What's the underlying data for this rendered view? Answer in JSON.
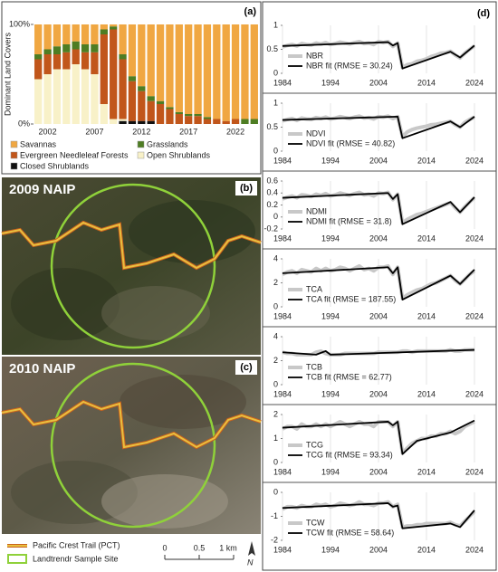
{
  "chart_data": [
    {
      "type": "stacked_bar",
      "panel_label": "(a)",
      "y_label": "Dominant Land Covers",
      "categories": [
        null,
        "2002",
        null,
        null,
        null,
        null,
        "2007",
        null,
        null,
        null,
        null,
        "2012",
        null,
        null,
        null,
        null,
        "2017",
        null,
        null,
        null,
        null,
        "2022",
        null,
        null
      ],
      "ylim": [
        0,
        100
      ],
      "yticks": [
        {
          "value": 0,
          "label": "0%"
        },
        {
          "value": 100,
          "label": "100%"
        }
      ],
      "series": [
        {
          "name": "Savannas",
          "color": "#f0a742",
          "values": [
            30,
            25,
            22,
            20,
            17,
            20,
            20,
            5,
            2,
            30,
            52,
            62,
            72,
            77,
            83,
            88,
            90,
            90,
            93,
            95,
            97,
            95,
            95,
            95
          ]
        },
        {
          "name": "Grasslands",
          "color": "#4e7d23",
          "values": [
            5,
            5,
            8,
            8,
            8,
            8,
            8,
            5,
            3,
            5,
            5,
            5,
            5,
            3,
            2,
            2,
            2,
            2,
            2,
            0,
            0,
            0,
            5,
            5
          ]
        },
        {
          "name": "Evergreen Needleleaf Forests",
          "color": "#c1561b",
          "values": [
            20,
            20,
            15,
            17,
            15,
            17,
            22,
            70,
            90,
            60,
            40,
            30,
            20,
            20,
            15,
            10,
            8,
            8,
            5,
            5,
            3,
            5,
            0,
            0
          ]
        },
        {
          "name": "Open Shrublands",
          "color": "#f8f1c8",
          "values": [
            45,
            50,
            55,
            55,
            60,
            55,
            50,
            20,
            5,
            2,
            0,
            0,
            0,
            0,
            0,
            0,
            0,
            0,
            0,
            0,
            0,
            0,
            0,
            0
          ]
        },
        {
          "name": "Closed Shrublands",
          "color": "#111111",
          "values": [
            0,
            0,
            0,
            0,
            0,
            0,
            0,
            0,
            0,
            3,
            3,
            3,
            3,
            0,
            0,
            0,
            0,
            0,
            0,
            0,
            0,
            0,
            0,
            0
          ]
        }
      ]
    },
    {
      "type": "line",
      "panel_label": "(d)",
      "xlim": [
        1984,
        2024
      ],
      "xticks": [
        1984,
        1994,
        2004,
        2014,
        2024
      ],
      "ylim": [
        0,
        1
      ],
      "yticks": [
        0,
        0.5,
        1
      ],
      "x": [
        1984,
        1985,
        1986,
        1987,
        1988,
        1989,
        1990,
        1991,
        1992,
        1993,
        1994,
        1995,
        1996,
        1997,
        1998,
        1999,
        2000,
        2001,
        2002,
        2003,
        2004,
        2005,
        2006,
        2007,
        2008,
        2009,
        2010,
        2011,
        2012,
        2013,
        2014,
        2015,
        2016,
        2017,
        2018,
        2019,
        2020,
        2021,
        2022,
        2023,
        2024
      ],
      "series": [
        {
          "name": "NBR",
          "color": "#c8c8c8",
          "values": [
            0.55,
            0.58,
            0.6,
            0.57,
            0.62,
            0.6,
            0.59,
            0.63,
            0.61,
            0.64,
            0.6,
            0.62,
            0.65,
            0.63,
            0.61,
            0.64,
            0.66,
            0.62,
            0.63,
            0.6,
            0.66,
            0.64,
            0.66,
            0.56,
            0.63,
            0.12,
            0.18,
            0.2,
            0.25,
            0.27,
            0.3,
            0.35,
            0.38,
            0.42,
            0.43,
            0.46,
            0.38,
            0.32,
            0.42,
            0.5,
            0.57
          ]
        },
        {
          "name": "NBR fit (RMSE = 30.24)",
          "color": "#000000",
          "x": [
            1984,
            2006,
            2007,
            2008,
            2009,
            2019,
            2021,
            2024
          ],
          "values": [
            0.57,
            0.65,
            0.58,
            0.63,
            0.1,
            0.45,
            0.33,
            0.58
          ]
        }
      ]
    },
    {
      "type": "line",
      "xlim": [
        1984,
        2024
      ],
      "xticks": [
        1984,
        1994,
        2004,
        2014,
        2024
      ],
      "ylim": [
        0,
        1
      ],
      "yticks": [
        0,
        0.5,
        1
      ],
      "x": [
        1984,
        1985,
        1986,
        1987,
        1988,
        1989,
        1990,
        1991,
        1992,
        1993,
        1994,
        1995,
        1996,
        1997,
        1998,
        1999,
        2000,
        2001,
        2002,
        2003,
        2004,
        2005,
        2006,
        2007,
        2008,
        2009,
        2010,
        2011,
        2012,
        2013,
        2014,
        2015,
        2016,
        2017,
        2018,
        2019,
        2020,
        2021,
        2022,
        2023,
        2024
      ],
      "series": [
        {
          "name": "NDVI",
          "color": "#c8c8c8",
          "values": [
            0.63,
            0.66,
            0.68,
            0.64,
            0.69,
            0.67,
            0.66,
            0.7,
            0.68,
            0.71,
            0.67,
            0.69,
            0.72,
            0.7,
            0.68,
            0.71,
            0.73,
            0.69,
            0.7,
            0.67,
            0.72,
            0.71,
            0.73,
            0.68,
            0.72,
            0.3,
            0.4,
            0.45,
            0.48,
            0.5,
            0.52,
            0.55,
            0.56,
            0.58,
            0.6,
            0.62,
            0.55,
            0.5,
            0.6,
            0.66,
            0.71
          ]
        },
        {
          "name": "NDVI fit (RMSE = 40.82)",
          "color": "#000000",
          "x": [
            1984,
            2008,
            2009,
            2019,
            2021,
            2024
          ],
          "values": [
            0.65,
            0.72,
            0.27,
            0.62,
            0.5,
            0.72
          ]
        }
      ]
    },
    {
      "type": "line",
      "xlim": [
        1984,
        2024
      ],
      "xticks": [
        1984,
        1994,
        2004,
        2014,
        2024
      ],
      "ylim": [
        -0.2,
        0.6
      ],
      "yticks": [
        -0.2,
        0,
        0.2,
        0.4,
        0.6
      ],
      "x": [
        1984,
        1985,
        1986,
        1987,
        1988,
        1989,
        1990,
        1991,
        1992,
        1993,
        1994,
        1995,
        1996,
        1997,
        1998,
        1999,
        2000,
        2001,
        2002,
        2003,
        2004,
        2005,
        2006,
        2007,
        2008,
        2009,
        2010,
        2011,
        2012,
        2013,
        2014,
        2015,
        2016,
        2017,
        2018,
        2019,
        2020,
        2021,
        2022,
        2023,
        2024
      ],
      "series": [
        {
          "name": "NDMI",
          "color": "#c8c8c8",
          "values": [
            0.3,
            0.33,
            0.35,
            0.32,
            0.37,
            0.36,
            0.34,
            0.38,
            0.36,
            0.39,
            0.35,
            0.37,
            0.4,
            0.38,
            0.36,
            0.39,
            0.41,
            0.37,
            0.38,
            0.35,
            0.4,
            0.39,
            0.41,
            0.29,
            0.38,
            -0.1,
            -0.04,
            0,
            0.04,
            0.06,
            0.09,
            0.12,
            0.15,
            0.18,
            0.21,
            0.24,
            0.15,
            0.08,
            0.17,
            0.25,
            0.32
          ]
        },
        {
          "name": "NDMI fit (RMSE = 31.8)",
          "color": "#000000",
          "x": [
            1984,
            2006,
            2007,
            2008,
            2009,
            2019,
            2021,
            2024
          ],
          "values": [
            0.32,
            0.4,
            0.3,
            0.38,
            -0.12,
            0.25,
            0.08,
            0.33
          ]
        }
      ]
    },
    {
      "type": "line",
      "xlim": [
        1984,
        2024
      ],
      "xticks": [
        1984,
        1994,
        2004,
        2014,
        2024
      ],
      "ylim": [
        0,
        4
      ],
      "yticks": [
        0,
        2,
        4
      ],
      "x": [
        1984,
        1985,
        1986,
        1987,
        1988,
        1989,
        1990,
        1991,
        1992,
        1993,
        1994,
        1995,
        1996,
        1997,
        1998,
        1999,
        2000,
        2001,
        2002,
        2003,
        2004,
        2005,
        2006,
        2007,
        2008,
        2009,
        2010,
        2011,
        2012,
        2013,
        2014,
        2015,
        2016,
        2017,
        2018,
        2019,
        2020,
        2021,
        2022,
        2023,
        2024
      ],
      "series": [
        {
          "name": "TCA",
          "color": "#c8c8c8",
          "values": [
            2.7,
            2.9,
            3,
            2.8,
            3.1,
            3,
            2.9,
            3.2,
            3,
            3.2,
            3,
            3.1,
            3.3,
            3.2,
            3,
            3.2,
            3.4,
            3.1,
            3.2,
            3,
            3.3,
            3.3,
            3.4,
            2.7,
            3.3,
            0.7,
            1,
            1.2,
            1.4,
            1.5,
            1.7,
            1.9,
            2,
            2.2,
            2.4,
            2.6,
            2.2,
            1.9,
            2.3,
            2.7,
            3
          ]
        },
        {
          "name": "TCA fit (RMSE = 187.55)",
          "color": "#000000",
          "x": [
            1984,
            2006,
            2007,
            2008,
            2009,
            2019,
            2021,
            2024
          ],
          "values": [
            2.8,
            3.3,
            2.8,
            3.3,
            0.6,
            2.6,
            1.9,
            3.1
          ]
        }
      ]
    },
    {
      "type": "line",
      "xlim": [
        1984,
        2024
      ],
      "xticks": [
        1984,
        1994,
        2004,
        2014,
        2024
      ],
      "ylim": [
        0,
        4
      ],
      "yticks": [
        0,
        2,
        4
      ],
      "x": [
        1984,
        1985,
        1986,
        1987,
        1988,
        1989,
        1990,
        1991,
        1992,
        1993,
        1994,
        1995,
        1996,
        1997,
        1998,
        1999,
        2000,
        2001,
        2002,
        2003,
        2004,
        2005,
        2006,
        2007,
        2008,
        2009,
        2010,
        2011,
        2012,
        2013,
        2014,
        2015,
        2016,
        2017,
        2018,
        2019,
        2020,
        2021,
        2022,
        2023,
        2024
      ],
      "series": [
        {
          "name": "TCB",
          "color": "#c8c8c8",
          "values": [
            2.7,
            2.6,
            2.6,
            2.5,
            2.5,
            2.5,
            2.5,
            2.7,
            2.8,
            2.6,
            2.5,
            2.5,
            2.5,
            2.6,
            2.6,
            2.6,
            2.6,
            2.6,
            2.6,
            2.6,
            2.7,
            2.7,
            2.7,
            2.7,
            2.7,
            2.8,
            2.8,
            2.7,
            2.8,
            2.8,
            2.8,
            2.8,
            2.8,
            2.8,
            2.8,
            2.9,
            2.8,
            2.8,
            2.9,
            2.9,
            2.9
          ]
        },
        {
          "name": "TCB fit (RMSE = 62.77)",
          "color": "#000000",
          "x": [
            1984,
            1991,
            1993,
            1994,
            2024
          ],
          "values": [
            2.7,
            2.5,
            2.8,
            2.5,
            2.9
          ]
        }
      ]
    },
    {
      "type": "line",
      "xlim": [
        1984,
        2024
      ],
      "xticks": [
        1984,
        1994,
        2004,
        2014,
        2024
      ],
      "ylim": [
        0,
        2
      ],
      "yticks": [
        0,
        1,
        2
      ],
      "x": [
        1984,
        1985,
        1986,
        1987,
        1988,
        1989,
        1990,
        1991,
        1992,
        1993,
        1994,
        1995,
        1996,
        1997,
        1998,
        1999,
        2000,
        2001,
        2002,
        2003,
        2004,
        2005,
        2006,
        2007,
        2008,
        2009,
        2010,
        2011,
        2012,
        2013,
        2014,
        2015,
        2016,
        2017,
        2018,
        2019,
        2020,
        2021,
        2022,
        2023,
        2024
      ],
      "series": [
        {
          "name": "TCG",
          "color": "#c8c8c8",
          "values": [
            1.4,
            1.5,
            1.5,
            1.4,
            1.6,
            1.5,
            1.5,
            1.6,
            1.5,
            1.6,
            1.5,
            1.6,
            1.7,
            1.6,
            1.5,
            1.6,
            1.7,
            1.6,
            1.6,
            1.5,
            1.7,
            1.7,
            1.7,
            1.5,
            1.7,
            0.4,
            0.6,
            0.8,
            0.9,
            1,
            1,
            1.1,
            1.1,
            1.2,
            1.2,
            1.3,
            1.2,
            1.3,
            1.5,
            1.6,
            1.7
          ]
        },
        {
          "name": "TCG fit (RMSE = 93.34)",
          "color": "#000000",
          "x": [
            1984,
            2006,
            2007,
            2008,
            2009,
            2012,
            2019,
            2024
          ],
          "values": [
            1.45,
            1.7,
            1.55,
            1.7,
            0.35,
            0.9,
            1.25,
            1.75
          ]
        }
      ]
    },
    {
      "type": "line",
      "xlim": [
        1984,
        2024
      ],
      "xticks": [
        1984,
        1994,
        2004,
        2014,
        2024
      ],
      "ylim": [
        -2,
        0
      ],
      "yticks": [
        -2,
        -1,
        0
      ],
      "x": [
        1984,
        1985,
        1986,
        1987,
        1988,
        1989,
        1990,
        1991,
        1992,
        1993,
        1994,
        1995,
        1996,
        1997,
        1998,
        1999,
        2000,
        2001,
        2002,
        2003,
        2004,
        2005,
        2006,
        2007,
        2008,
        2009,
        2010,
        2011,
        2012,
        2013,
        2014,
        2015,
        2016,
        2017,
        2018,
        2019,
        2020,
        2021,
        2022,
        2023,
        2024
      ],
      "series": [
        {
          "name": "TCW",
          "color": "#c8c8c8",
          "values": [
            -0.7,
            -0.6,
            -0.6,
            -0.65,
            -0.55,
            -0.6,
            -0.6,
            -0.5,
            -0.55,
            -0.5,
            -0.6,
            -0.55,
            -0.45,
            -0.5,
            -0.55,
            -0.5,
            -0.4,
            -0.5,
            -0.5,
            -0.55,
            -0.45,
            -0.45,
            -0.4,
            -0.6,
            -0.5,
            -1.45,
            -1.4,
            -1.4,
            -1.35,
            -1.35,
            -1.3,
            -1.3,
            -1.3,
            -1.3,
            -1.3,
            -1.25,
            -1.35,
            -1.4,
            -1.2,
            -1,
            -0.8
          ]
        },
        {
          "name": "TCW fit (RMSE = 58.64)",
          "color": "#000000",
          "x": [
            1984,
            2006,
            2007,
            2008,
            2009,
            2019,
            2021,
            2024
          ],
          "values": [
            -0.65,
            -0.45,
            -0.6,
            -0.55,
            -1.5,
            -1.3,
            -1.45,
            -0.75
          ]
        }
      ]
    }
  ],
  "maps": [
    {
      "title": "2009 NAIP",
      "label": "(b)"
    },
    {
      "title": "2010 NAIP",
      "label": "(c)"
    }
  ],
  "map_legend": {
    "items": [
      "Pacific Crest Trail (PCT)",
      "Landtrendr Sample Site"
    ],
    "scale_labels": [
      "0",
      "0.5",
      "1 km"
    ],
    "north": "N"
  }
}
